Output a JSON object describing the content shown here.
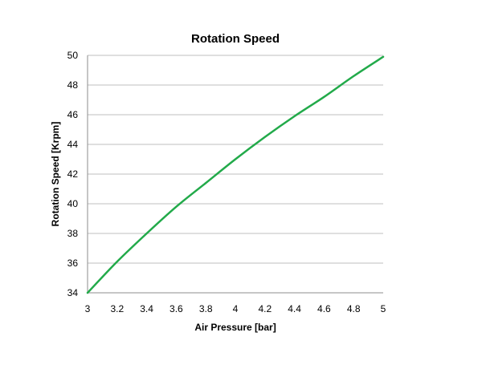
{
  "chart_data": {
    "type": "line",
    "title": "Rotation Speed",
    "xlabel": "Air Pressure [bar]",
    "ylabel": "Rotation Speed [Krpm]",
    "xlim": [
      3,
      5
    ],
    "ylim": [
      34,
      50
    ],
    "xticks": [
      "3",
      "3.2",
      "3.4",
      "3.6",
      "3.8",
      "4",
      "4.2",
      "4.4",
      "4.6",
      "4.8",
      "5"
    ],
    "yticks": [
      "34",
      "36",
      "38",
      "40",
      "42",
      "44",
      "46",
      "48",
      "50"
    ],
    "grid": "horizontal",
    "legend": "none",
    "series": [
      {
        "color": "#22AA4A",
        "x": [
          3.0,
          3.2,
          3.4,
          3.6,
          3.8,
          4.0,
          4.2,
          4.4,
          4.6,
          4.8,
          5.0
        ],
        "y": [
          34.0,
          36.1,
          38.0,
          39.8,
          41.4,
          43.0,
          44.5,
          45.9,
          47.2,
          48.6,
          49.9
        ]
      }
    ]
  }
}
